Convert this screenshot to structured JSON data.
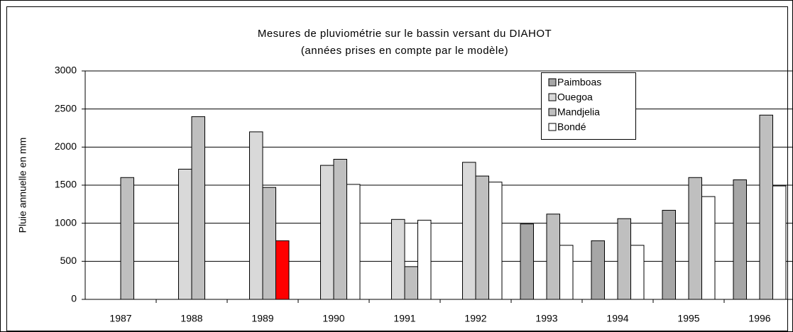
{
  "chart_data": {
    "type": "bar",
    "title": "Mesures de pluviométrie sur le bassin versant du DIAHOT",
    "subtitle": "(années prises en compte par le modèle)",
    "y_label": "Pluie annuelle en mm",
    "categories": [
      "1987",
      "1988",
      "1989",
      "1990",
      "1991",
      "1992",
      "1993",
      "1994",
      "1995",
      "1996"
    ],
    "series": [
      {
        "name": "Paimboas",
        "color": "#a6a6a6",
        "values": [
          null,
          null,
          null,
          null,
          null,
          null,
          990,
          770,
          1170,
          1570
        ]
      },
      {
        "name": "Ouegoa",
        "color": "#d9d9d9",
        "values": [
          null,
          1710,
          2200,
          1760,
          1050,
          1800,
          null,
          null,
          null,
          null
        ]
      },
      {
        "name": "Mandjelia",
        "color": "#bfbfbf",
        "values": [
          1600,
          2400,
          1470,
          1840,
          430,
          1620,
          1120,
          1060,
          1600,
          2420
        ]
      },
      {
        "name": "Bondé",
        "color": "#ffffff",
        "values": [
          null,
          null,
          770,
          1510,
          1040,
          1540,
          710,
          710,
          1350,
          1490
        ],
        "colors": [
          "#ffffff",
          "#ffffff",
          "#ff0000",
          "#ffffff",
          "#ffffff",
          "#ffffff",
          "#ffffff",
          "#ffffff",
          "#ffffff",
          "#ffffff"
        ]
      }
    ],
    "ylim": [
      0,
      3000
    ],
    "yticks": [
      0,
      500,
      1000,
      1500,
      2000,
      2500,
      3000
    ],
    "grid": true,
    "legend": "top-right"
  }
}
